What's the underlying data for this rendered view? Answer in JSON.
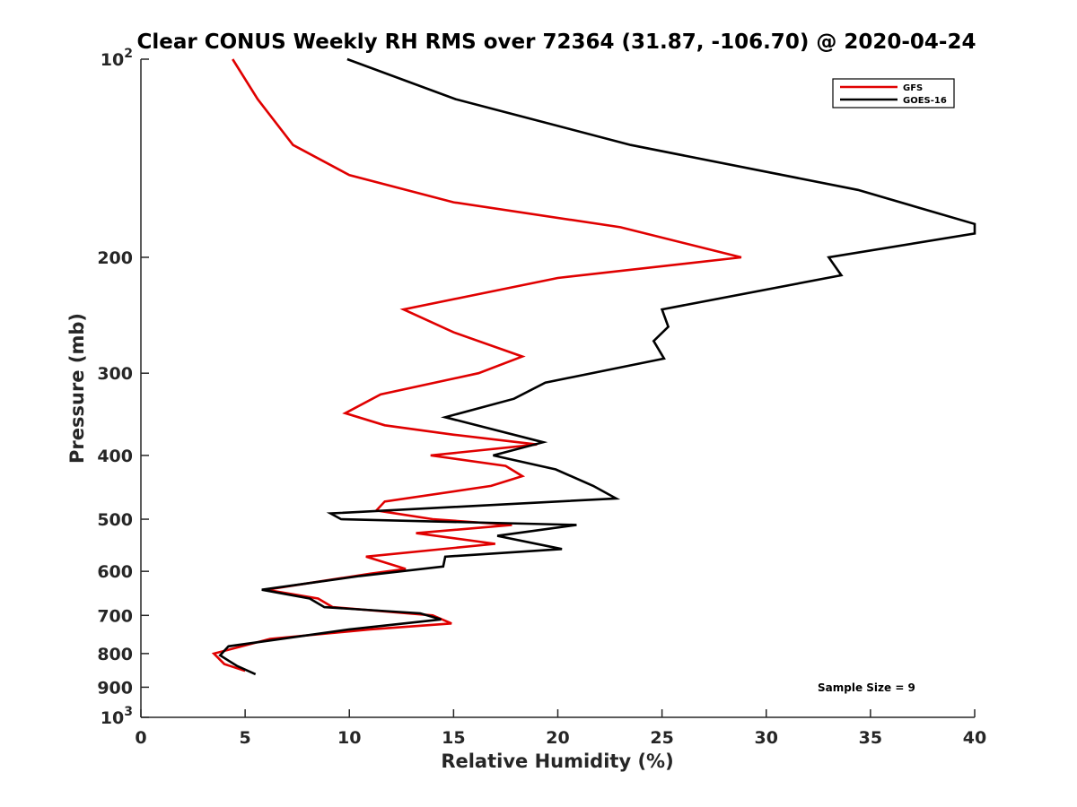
{
  "chart_data": {
    "type": "line",
    "title": "Clear CONUS Weekly RH RMS over 72364 (31.87, -106.70) @ 2020-04-24",
    "xlabel": "Relative Humidity (%)",
    "ylabel": "Pressure (mb)",
    "xlim": [
      0,
      40
    ],
    "ylim": [
      100,
      1000
    ],
    "y_scale": "log",
    "y_reversed": true,
    "x_ticks": [
      "0",
      "5",
      "10",
      "15",
      "20",
      "25",
      "30",
      "35",
      "40"
    ],
    "y_ticks": [
      {
        "value": 100,
        "base": "10",
        "exp": "2"
      },
      {
        "value": 200,
        "label": "200"
      },
      {
        "value": 300,
        "label": "300"
      },
      {
        "value": 400,
        "label": "400"
      },
      {
        "value": 500,
        "label": "500"
      },
      {
        "value": 600,
        "label": "600"
      },
      {
        "value": 700,
        "label": "700"
      },
      {
        "value": 800,
        "label": "800"
      },
      {
        "value": 900,
        "label": "900"
      },
      {
        "value": 1000,
        "base": "10",
        "exp": "3"
      }
    ],
    "grid": false,
    "legend_position": "top-right",
    "annotation": "Sample Size = 9",
    "series": [
      {
        "name": "GFS",
        "color": "#e00000",
        "points": [
          [
            4.4,
            100
          ],
          [
            5.6,
            115
          ],
          [
            7.3,
            135
          ],
          [
            10.0,
            150
          ],
          [
            15.0,
            165
          ],
          [
            23.0,
            180
          ],
          [
            28.8,
            200
          ],
          [
            20.0,
            215
          ],
          [
            12.6,
            240
          ],
          [
            15.0,
            260
          ],
          [
            18.3,
            283
          ],
          [
            16.2,
            300
          ],
          [
            11.5,
            323
          ],
          [
            9.8,
            345
          ],
          [
            11.7,
            360
          ],
          [
            15.0,
            372
          ],
          [
            19.0,
            385
          ],
          [
            13.9,
            400
          ],
          [
            17.5,
            415
          ],
          [
            18.3,
            430
          ],
          [
            16.8,
            445
          ],
          [
            11.7,
            470
          ],
          [
            11.3,
            485
          ],
          [
            14.0,
            500
          ],
          [
            17.8,
            510
          ],
          [
            13.2,
            525
          ],
          [
            17.0,
            545
          ],
          [
            10.8,
            570
          ],
          [
            12.7,
            595
          ],
          [
            11.0,
            605
          ],
          [
            6.0,
            640
          ],
          [
            8.5,
            660
          ],
          [
            9.2,
            680
          ],
          [
            14.0,
            700
          ],
          [
            14.9,
            720
          ],
          [
            11.0,
            735
          ],
          [
            6.2,
            760
          ],
          [
            3.5,
            800
          ],
          [
            4.0,
            830
          ],
          [
            5.0,
            850
          ]
        ]
      },
      {
        "name": "GOES-16",
        "color": "#000000",
        "points": [
          [
            9.9,
            100
          ],
          [
            15.1,
            115
          ],
          [
            23.5,
            135
          ],
          [
            34.4,
            158
          ],
          [
            40.0,
            178
          ],
          [
            40.0,
            184
          ],
          [
            33.0,
            200
          ],
          [
            33.6,
            213
          ],
          [
            25.0,
            240
          ],
          [
            25.3,
            255
          ],
          [
            24.6,
            268
          ],
          [
            25.1,
            285
          ],
          [
            19.4,
            310
          ],
          [
            17.9,
            328
          ],
          [
            14.6,
            350
          ],
          [
            19.3,
            382
          ],
          [
            16.9,
            400
          ],
          [
            19.9,
            420
          ],
          [
            21.7,
            445
          ],
          [
            22.8,
            465
          ],
          [
            9.1,
            490
          ],
          [
            9.6,
            500
          ],
          [
            20.9,
            510
          ],
          [
            17.1,
            530
          ],
          [
            20.2,
            555
          ],
          [
            14.6,
            570
          ],
          [
            14.5,
            590
          ],
          [
            10.5,
            610
          ],
          [
            5.8,
            640
          ],
          [
            8.1,
            660
          ],
          [
            8.8,
            680
          ],
          [
            13.4,
            695
          ],
          [
            14.4,
            710
          ],
          [
            10.0,
            735
          ],
          [
            4.2,
            780
          ],
          [
            3.8,
            805
          ],
          [
            4.6,
            835
          ],
          [
            5.5,
            860
          ]
        ]
      }
    ]
  }
}
